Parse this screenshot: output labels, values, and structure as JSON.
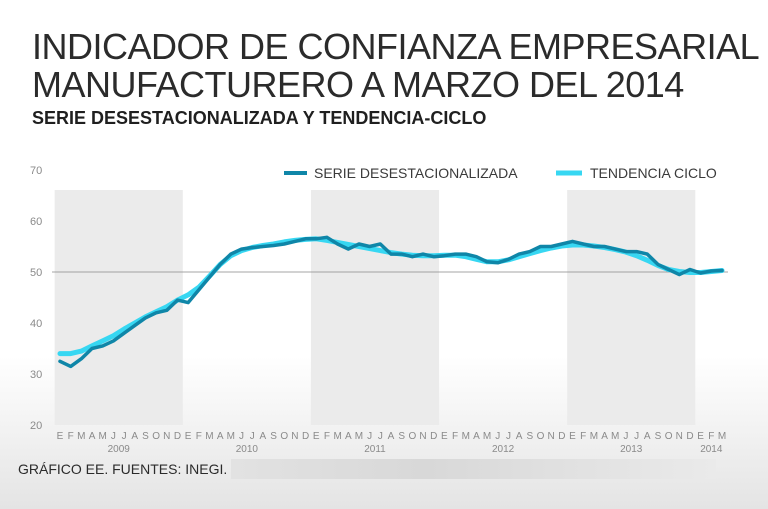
{
  "colors": {
    "series": "#0f86a8",
    "trend": "#37d7f2",
    "shade": "#ebebeb",
    "reference_line": "#888888"
  },
  "footer": {
    "source": "GRÁFICO EE. FUENTES: INEGI."
  },
  "chart_data": {
    "type": "line",
    "title": "INDICADOR DE CONFIANZA EMPRESARIAL MANUFACTURERO A MARZO DEL 2014",
    "subtitle": "SERIE DESESTACIONALIZADA Y TENDENCIA-CICLO",
    "xlabel": "",
    "ylabel": "",
    "ylim": [
      20,
      70
    ],
    "yticks": [
      20,
      30,
      40,
      50,
      60,
      70
    ],
    "reference_line": 50,
    "legend_position": "top-right",
    "months": [
      "E",
      "F",
      "M",
      "A",
      "M",
      "J",
      "J",
      "A",
      "S",
      "O",
      "N",
      "D",
      "E",
      "F",
      "M",
      "A",
      "M",
      "J",
      "J",
      "A",
      "S",
      "O",
      "N",
      "D",
      "E",
      "F",
      "M",
      "A",
      "M",
      "J",
      "J",
      "A",
      "S",
      "O",
      "N",
      "D",
      "E",
      "F",
      "M",
      "A",
      "M",
      "J",
      "J",
      "A",
      "S",
      "O",
      "N",
      "D",
      "E",
      "F",
      "M",
      "A",
      "M",
      "J",
      "J",
      "A",
      "S",
      "O",
      "N",
      "D",
      "E",
      "F",
      "M"
    ],
    "years": [
      {
        "label": "2009",
        "start": 0
      },
      {
        "label": "2010",
        "start": 12
      },
      {
        "label": "2011",
        "start": 24
      },
      {
        "label": "2012",
        "start": 36
      },
      {
        "label": "2013",
        "start": 48
      },
      {
        "label": "2014",
        "start": 60
      }
    ],
    "series": [
      {
        "name": "SERIE DESESTACIONALIZADA",
        "values": [
          32.5,
          31.5,
          33.0,
          35.0,
          35.5,
          36.5,
          38.0,
          39.5,
          41.0,
          42.0,
          42.5,
          44.5,
          44.0,
          46.5,
          49.0,
          51.5,
          53.5,
          54.5,
          54.8,
          55.0,
          55.2,
          55.5,
          56.0,
          56.5,
          56.5,
          56.8,
          55.5,
          54.5,
          55.5,
          55.0,
          55.5,
          53.5,
          53.5,
          53.0,
          53.5,
          53.0,
          53.2,
          53.5,
          53.5,
          53.0,
          52.0,
          51.8,
          52.5,
          53.5,
          54.0,
          55.0,
          55.0,
          55.5,
          56.0,
          55.5,
          55.0,
          55.0,
          54.5,
          54.0,
          54.0,
          53.5,
          51.5,
          50.5,
          49.5,
          50.5,
          49.8,
          50.2,
          50.3
        ]
      },
      {
        "name": "TENDENCIA CICLO",
        "values": [
          34.0,
          34.0,
          34.5,
          35.5,
          36.5,
          37.5,
          38.8,
          40.0,
          41.2,
          42.2,
          43.2,
          44.5,
          45.5,
          47.0,
          49.2,
          51.5,
          53.2,
          54.2,
          54.8,
          55.2,
          55.5,
          55.9,
          56.2,
          56.4,
          56.5,
          56.2,
          55.8,
          55.4,
          55.0,
          54.6,
          54.2,
          53.8,
          53.5,
          53.3,
          53.2,
          53.2,
          53.3,
          53.3,
          53.0,
          52.5,
          52.0,
          52.0,
          52.4,
          53.0,
          53.6,
          54.2,
          54.7,
          55.1,
          55.3,
          55.3,
          55.1,
          54.8,
          54.4,
          53.9,
          53.2,
          52.3,
          51.3,
          50.5,
          50.1,
          49.9,
          49.9,
          50.1,
          50.3
        ]
      }
    ]
  }
}
